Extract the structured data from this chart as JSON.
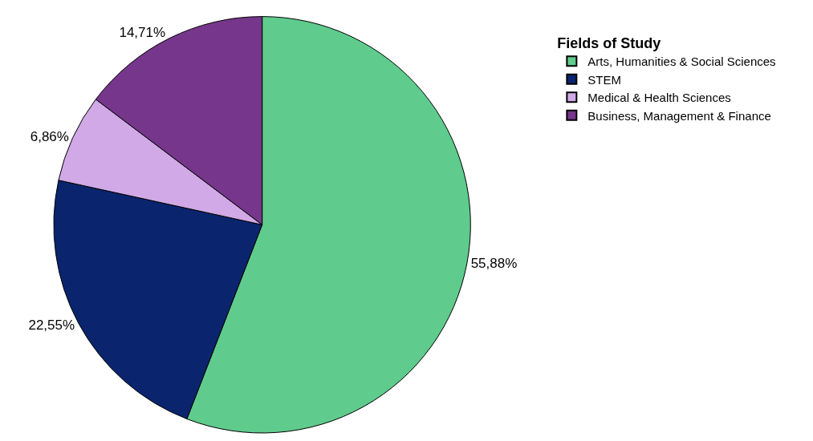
{
  "chart_data": {
    "type": "pie",
    "legend_title": "Fields of Study",
    "categories": [
      "Arts, Humanities & Social Sciences",
      "STEM",
      "Medical & Health Sciences",
      "Business, Management & Finance"
    ],
    "values": [
      55.88,
      22.55,
      6.86,
      14.71
    ],
    "value_labels": [
      "55,88%",
      "22,55%",
      "6,86%",
      "14,71%"
    ],
    "colors": [
      "#5fcb8c",
      "#0a256e",
      "#d0a9e6",
      "#76368b"
    ],
    "legend": "top right"
  }
}
